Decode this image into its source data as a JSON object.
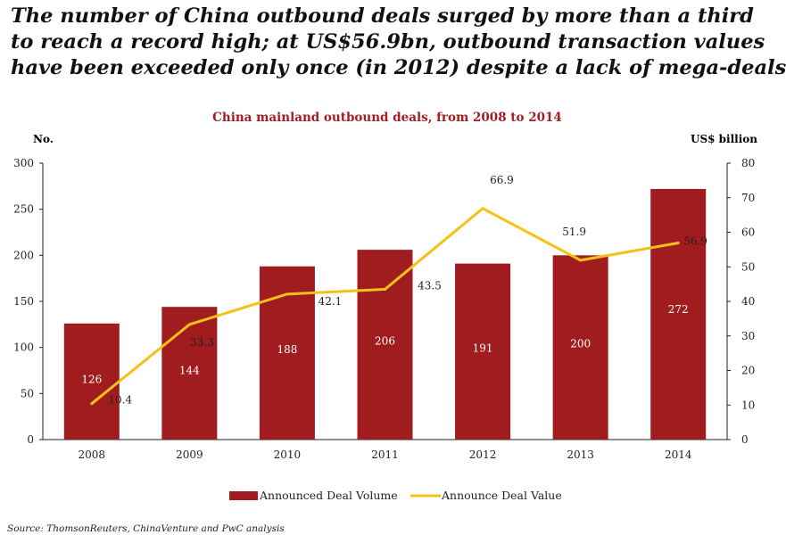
{
  "headline": [
    "The number of China outbound deals surged by more than a third",
    "to reach a record high; at US$56.9bn, outbound transaction values",
    "have been exceeded only once (in 2012) despite a lack of mega-deals"
  ],
  "source": "Source: ThomsonReuters, ChinaVenture and PwC analysis",
  "colors": {
    "bar": "#a01c1e",
    "line": "#f5c119",
    "title": "#a31d22",
    "axis": "#222222"
  },
  "chart_data": {
    "type": "bar",
    "title": "China mainland outbound deals, from 2008 to 2014",
    "xlabel": "",
    "ylabel": "No.",
    "y2label": "US$ billion",
    "categories": [
      "2008",
      "2009",
      "2010",
      "2011",
      "2012",
      "2013",
      "2014"
    ],
    "ylim": [
      0,
      300
    ],
    "yticks": [
      "0",
      "50",
      "100",
      "150",
      "200",
      "250",
      "300"
    ],
    "y2lim": [
      0,
      80
    ],
    "y2ticks": [
      "0",
      "10",
      "20",
      "30",
      "40",
      "50",
      "60",
      "70",
      "80"
    ],
    "grid": false,
    "legend_position": "bottom",
    "series": [
      {
        "name": "Announced Deal Volume",
        "type": "bar",
        "axis": "left",
        "values": [
          126,
          144,
          188,
          206,
          191,
          200,
          272
        ],
        "labels": [
          "126",
          "144",
          "188",
          "206",
          "191",
          "200",
          "272"
        ]
      },
      {
        "name": "Announce Deal Value",
        "type": "line",
        "axis": "right",
        "values": [
          10.4,
          33.3,
          42.1,
          43.5,
          66.9,
          51.9,
          56.9
        ],
        "labels": [
          "10.4",
          "33.3",
          "42.1",
          "43.5",
          "66.9",
          "51.9",
          "56.9"
        ]
      }
    ]
  }
}
